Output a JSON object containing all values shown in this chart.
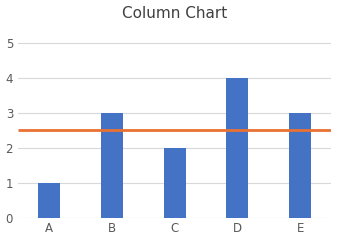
{
  "categories": [
    "A",
    "B",
    "C",
    "D",
    "E"
  ],
  "bar_values": [
    1,
    3,
    2,
    4,
    3
  ],
  "bar_color": "#4472C4",
  "line_value": 2.5,
  "line_color": "#E97132",
  "line_width": 2.0,
  "title": "Column Chart",
  "title_fontsize": 11,
  "title_color": "#404040",
  "ylim": [
    0,
    5.5
  ],
  "yticks": [
    0,
    1,
    2,
    3,
    4,
    5
  ],
  "tick_label_fontsize": 8.5,
  "tick_label_color": "#595959",
  "grid_color": "#D9D9D9",
  "background_color": "#FFFFFF",
  "bar_width": 0.35,
  "figsize": [
    3.37,
    2.41
  ],
  "dpi": 100
}
